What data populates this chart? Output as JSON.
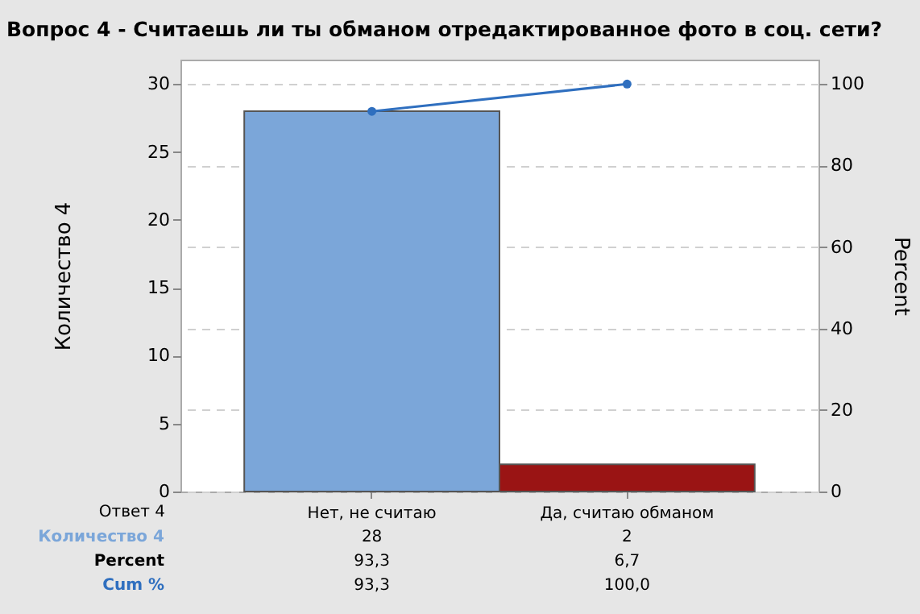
{
  "chart_data": {
    "type": "bar",
    "title": "Вопрос 4 - Считаешь ли ты обманом отредактированное фото в соц. сети?",
    "xlabel": "Ответ 4",
    "ylabel": "Количество 4",
    "y2label": "Percent",
    "categories": [
      "Нет, не считаю",
      "Да, считаю обманом"
    ],
    "series": [
      {
        "name": "Количество 4",
        "colors": [
          "#7ba6d9",
          "#9a1414"
        ],
        "values": [
          28,
          2
        ],
        "value_labels": [
          "28",
          "2"
        ]
      },
      {
        "name": "Cum %",
        "type": "line",
        "axis": "y2",
        "color": "#2f6fbf",
        "marker": "circle",
        "values": [
          93.3,
          100
        ],
        "value_labels": [
          "93,3",
          "100,0"
        ]
      }
    ],
    "annotations": [
      "Percent",
      "93,3",
      "6,7"
    ],
    "ylim": [
      0,
      31.8
    ],
    "yticks": [
      0,
      5,
      10,
      15,
      20,
      25,
      30
    ],
    "y2lim": [
      0,
      106
    ],
    "y2ticks": [
      0,
      20,
      40,
      60,
      80,
      100
    ],
    "grid": "y2"
  }
}
